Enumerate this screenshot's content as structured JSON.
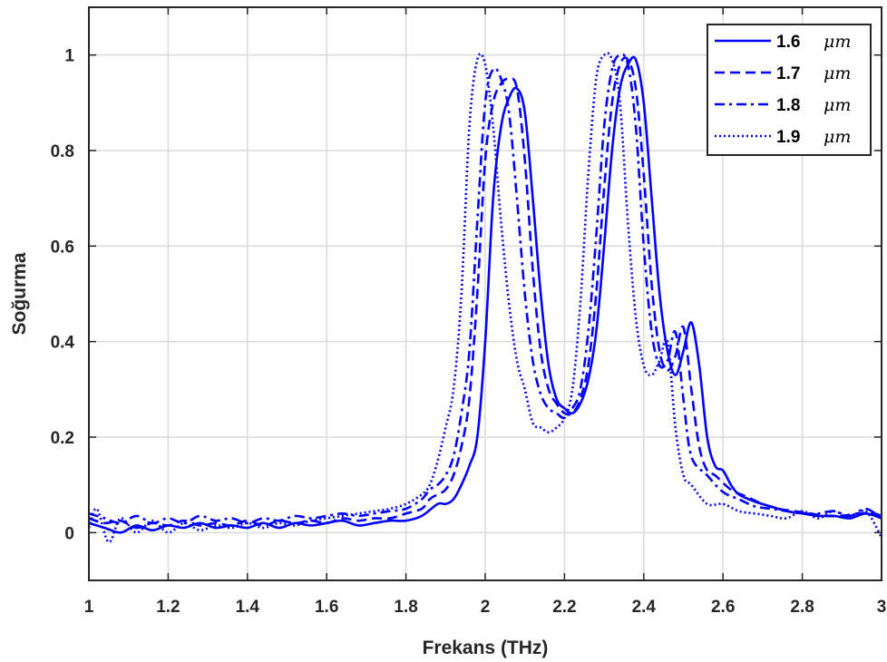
{
  "chart_data": {
    "type": "line",
    "title": "",
    "xlabel": "Frekans (THz)",
    "ylabel": "Soğurma",
    "xlim": [
      1,
      3
    ],
    "ylim": [
      -0.1,
      1.1
    ],
    "xticks": [
      "1",
      "1.2",
      "1.4",
      "1.6",
      "1.8",
      "2",
      "2.2",
      "2.4",
      "2.6",
      "2.8",
      "3"
    ],
    "yticks": [
      "0",
      "0.2",
      "0.4",
      "0.6",
      "0.8",
      "1"
    ],
    "grid": true,
    "legend_position": "top-right",
    "line_color": "#0000ff",
    "series": [
      {
        "name": "1.6 μm",
        "label_number": "1.6",
        "unit": "μm",
        "style": "solid",
        "x": [
          1.0,
          1.04,
          1.08,
          1.12,
          1.16,
          1.2,
          1.24,
          1.28,
          1.32,
          1.36,
          1.4,
          1.44,
          1.48,
          1.52,
          1.56,
          1.6,
          1.64,
          1.68,
          1.72,
          1.76,
          1.8,
          1.84,
          1.88,
          1.9,
          1.92,
          1.94,
          1.96,
          1.98,
          2.0,
          2.02,
          2.04,
          2.06,
          2.08,
          2.1,
          2.12,
          2.14,
          2.16,
          2.18,
          2.2,
          2.22,
          2.24,
          2.26,
          2.28,
          2.3,
          2.32,
          2.34,
          2.36,
          2.38,
          2.4,
          2.42,
          2.44,
          2.46,
          2.48,
          2.5,
          2.52,
          2.54,
          2.56,
          2.58,
          2.6,
          2.62,
          2.64,
          2.68,
          2.72,
          2.76,
          2.8,
          2.84,
          2.88,
          2.92,
          2.96,
          3.0
        ],
        "y": [
          0.02,
          0.01,
          0.0,
          0.015,
          0.005,
          0.015,
          0.01,
          0.02,
          0.01,
          0.015,
          0.01,
          0.02,
          0.01,
          0.02,
          0.015,
          0.02,
          0.025,
          0.015,
          0.02,
          0.025,
          0.025,
          0.035,
          0.06,
          0.06,
          0.07,
          0.1,
          0.14,
          0.2,
          0.4,
          0.7,
          0.85,
          0.91,
          0.93,
          0.88,
          0.7,
          0.5,
          0.35,
          0.28,
          0.26,
          0.25,
          0.27,
          0.32,
          0.42,
          0.6,
          0.8,
          0.93,
          0.98,
          0.99,
          0.9,
          0.7,
          0.5,
          0.38,
          0.33,
          0.38,
          0.44,
          0.35,
          0.2,
          0.14,
          0.13,
          0.1,
          0.08,
          0.065,
          0.055,
          0.045,
          0.04,
          0.035,
          0.035,
          0.03,
          0.04,
          0.03
        ]
      },
      {
        "name": "1.7 μm",
        "label_number": "1.7",
        "unit": "μm",
        "style": "dashed",
        "x": [
          1.0,
          1.04,
          1.08,
          1.12,
          1.16,
          1.2,
          1.24,
          1.28,
          1.32,
          1.36,
          1.4,
          1.44,
          1.48,
          1.52,
          1.56,
          1.6,
          1.64,
          1.68,
          1.72,
          1.76,
          1.8,
          1.84,
          1.86,
          1.88,
          1.9,
          1.92,
          1.94,
          1.96,
          1.98,
          2.0,
          2.02,
          2.04,
          2.06,
          2.08,
          2.1,
          2.12,
          2.14,
          2.16,
          2.18,
          2.2,
          2.22,
          2.24,
          2.26,
          2.28,
          2.3,
          2.32,
          2.34,
          2.36,
          2.38,
          2.4,
          2.42,
          2.44,
          2.46,
          2.48,
          2.5,
          2.52,
          2.54,
          2.56,
          2.58,
          2.62,
          2.66,
          2.7,
          2.74,
          2.78,
          2.82,
          2.86,
          2.9,
          2.94,
          2.98,
          3.0
        ],
        "y": [
          0.03,
          0.02,
          0.025,
          0.01,
          0.02,
          0.015,
          0.025,
          0.015,
          0.02,
          0.015,
          0.025,
          0.015,
          0.025,
          0.02,
          0.025,
          0.02,
          0.03,
          0.025,
          0.03,
          0.03,
          0.04,
          0.05,
          0.07,
          0.08,
          0.09,
          0.12,
          0.18,
          0.28,
          0.5,
          0.78,
          0.9,
          0.94,
          0.95,
          0.93,
          0.78,
          0.55,
          0.38,
          0.3,
          0.27,
          0.25,
          0.25,
          0.28,
          0.35,
          0.5,
          0.72,
          0.9,
          0.98,
          0.99,
          0.93,
          0.75,
          0.52,
          0.38,
          0.34,
          0.37,
          0.43,
          0.3,
          0.18,
          0.13,
          0.12,
          0.09,
          0.075,
          0.06,
          0.05,
          0.045,
          0.04,
          0.035,
          0.035,
          0.04,
          0.04,
          0.035
        ]
      },
      {
        "name": "1.8 μm",
        "label_number": "1.8",
        "unit": "μm",
        "style": "dashdot",
        "x": [
          1.0,
          1.04,
          1.08,
          1.12,
          1.16,
          1.2,
          1.24,
          1.28,
          1.32,
          1.36,
          1.4,
          1.44,
          1.48,
          1.52,
          1.56,
          1.6,
          1.64,
          1.68,
          1.72,
          1.76,
          1.8,
          1.84,
          1.86,
          1.88,
          1.9,
          1.92,
          1.94,
          1.96,
          1.98,
          2.0,
          2.02,
          2.04,
          2.06,
          2.08,
          2.1,
          2.12,
          2.14,
          2.16,
          2.18,
          2.2,
          2.22,
          2.24,
          2.26,
          2.28,
          2.3,
          2.32,
          2.34,
          2.36,
          2.38,
          2.4,
          2.42,
          2.44,
          2.46,
          2.48,
          2.5,
          2.52,
          2.56,
          2.6,
          2.64,
          2.68,
          2.72,
          2.76,
          2.8,
          2.84,
          2.88,
          2.92,
          2.96,
          3.0
        ],
        "y": [
          0.04,
          0.03,
          0.02,
          0.035,
          0.02,
          0.03,
          0.02,
          0.035,
          0.025,
          0.03,
          0.02,
          0.03,
          0.025,
          0.035,
          0.03,
          0.035,
          0.04,
          0.035,
          0.04,
          0.045,
          0.05,
          0.07,
          0.09,
          0.1,
          0.12,
          0.16,
          0.25,
          0.38,
          0.65,
          0.9,
          0.97,
          0.95,
          0.88,
          0.7,
          0.5,
          0.36,
          0.29,
          0.26,
          0.25,
          0.24,
          0.26,
          0.3,
          0.42,
          0.62,
          0.85,
          0.97,
          1.0,
          0.98,
          0.85,
          0.6,
          0.42,
          0.35,
          0.36,
          0.42,
          0.28,
          0.16,
          0.12,
          0.085,
          0.07,
          0.055,
          0.05,
          0.045,
          0.04,
          0.04,
          0.045,
          0.035,
          0.05,
          0.03
        ]
      },
      {
        "name": "1.9 μm",
        "label_number": "1.9",
        "unit": "μm",
        "style": "dotted",
        "x": [
          1.0,
          1.02,
          1.05,
          1.08,
          1.12,
          1.16,
          1.2,
          1.24,
          1.28,
          1.32,
          1.36,
          1.4,
          1.44,
          1.48,
          1.52,
          1.56,
          1.6,
          1.64,
          1.68,
          1.72,
          1.76,
          1.8,
          1.84,
          1.86,
          1.88,
          1.9,
          1.92,
          1.94,
          1.96,
          1.98,
          2.0,
          2.02,
          2.04,
          2.06,
          2.08,
          2.1,
          2.12,
          2.14,
          2.16,
          2.18,
          2.2,
          2.22,
          2.24,
          2.26,
          2.28,
          2.3,
          2.32,
          2.34,
          2.36,
          2.38,
          2.4,
          2.42,
          2.44,
          2.46,
          2.48,
          2.5,
          2.52,
          2.56,
          2.6,
          2.64,
          2.68,
          2.72,
          2.76,
          2.8,
          2.84,
          2.88,
          2.92,
          2.96,
          3.0
        ],
        "y": [
          0.01,
          0.05,
          -0.02,
          0.03,
          0.0,
          0.025,
          0.0,
          0.02,
          0.005,
          0.015,
          0.01,
          0.02,
          0.01,
          0.02,
          0.015,
          0.025,
          0.03,
          0.035,
          0.04,
          0.045,
          0.05,
          0.06,
          0.08,
          0.1,
          0.15,
          0.22,
          0.3,
          0.5,
          0.85,
          0.99,
          0.98,
          0.85,
          0.65,
          0.48,
          0.36,
          0.3,
          0.23,
          0.22,
          0.21,
          0.22,
          0.24,
          0.3,
          0.48,
          0.75,
          0.95,
          1.0,
          0.99,
          0.9,
          0.65,
          0.45,
          0.35,
          0.33,
          0.36,
          0.4,
          0.22,
          0.12,
          0.1,
          0.06,
          0.06,
          0.045,
          0.04,
          0.035,
          0.03,
          0.045,
          0.03,
          0.045,
          0.03,
          0.045,
          -0.01
        ]
      }
    ]
  }
}
